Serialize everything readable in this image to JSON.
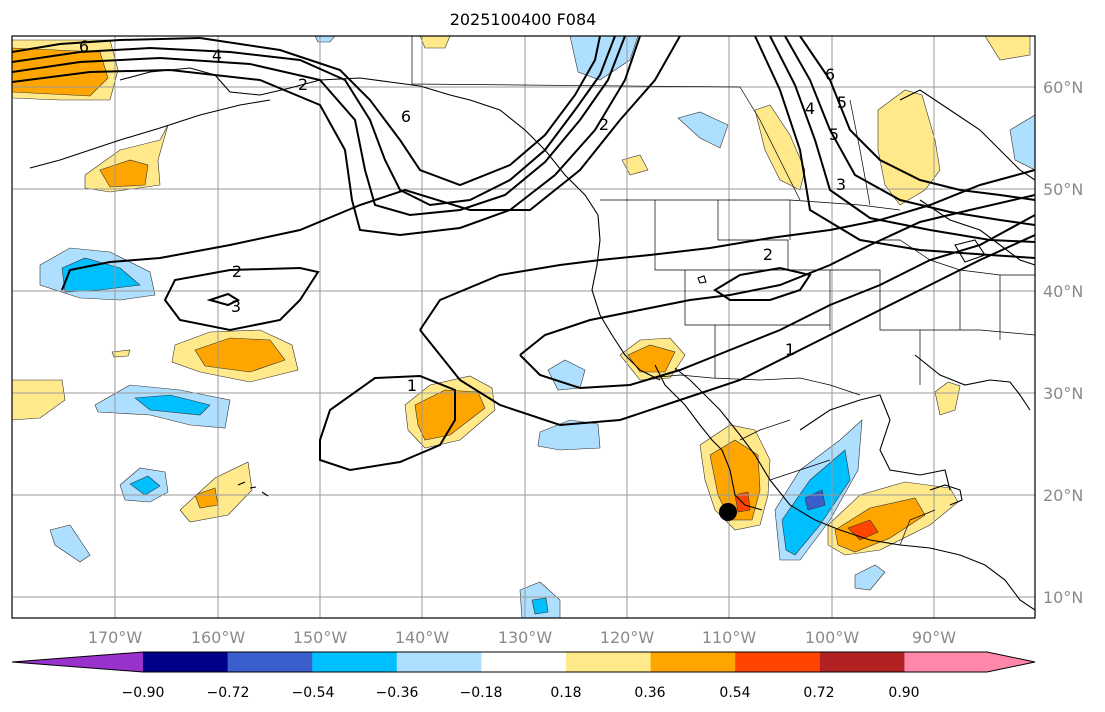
{
  "title": "2025100400 F084",
  "lon_ticks": [
    "170°W",
    "160°W",
    "150°W",
    "140°W",
    "130°W",
    "120°W",
    "110°W",
    "100°W",
    "90°W"
  ],
  "lat_ticks": [
    "60°N",
    "50°N",
    "40°N",
    "30°N",
    "20°N",
    "10°N"
  ],
  "colorbar": {
    "ticks": [
      "−0.90",
      "−0.72",
      "−0.54",
      "−0.36",
      "−0.18",
      "0.18",
      "0.36",
      "0.54",
      "0.72",
      "0.90"
    ],
    "colors": [
      "#9932cc",
      "#00008b",
      "#3a5fcd",
      "#00bfff",
      "#afdfff",
      "#ffffff",
      "#ffe98a",
      "#ffa500",
      "#ff4500",
      "#b22222",
      "#ff88aa"
    ]
  },
  "contour_labels": [
    "6",
    "4",
    "2",
    "6",
    "2",
    "5",
    "6",
    "5",
    "4",
    "3",
    "2",
    "3",
    "2",
    "1",
    "1"
  ],
  "marker": "storm-position-dot"
}
